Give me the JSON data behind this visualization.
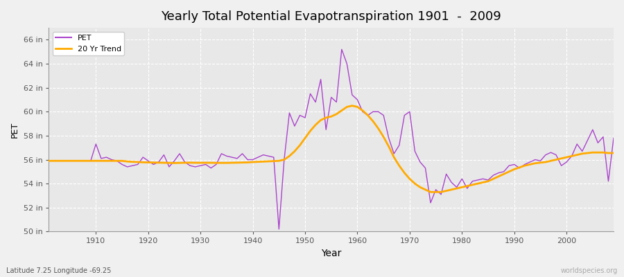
{
  "title": "Yearly Total Potential Evapotranspiration 1901  -  2009",
  "xlabel": "Year",
  "ylabel": "PET",
  "bottom_left_label": "Latitude 7.25 Longitude -69.25",
  "bottom_right_label": "worldspecies.org",
  "pet_color": "#aa44cc",
  "trend_color": "#ffaa00",
  "bg_color": "#f0f0f0",
  "plot_bg_color": "#e8e8e8",
  "ylim": [
    50,
    67
  ],
  "ytick_labels": [
    "50 in",
    "52 in",
    "54 in",
    "56 in",
    "58 in",
    "60 in",
    "62 in",
    "64 in",
    "66 in"
  ],
  "ytick_values": [
    50,
    52,
    54,
    56,
    58,
    60,
    62,
    64,
    66
  ],
  "xlim": [
    1901,
    2009
  ],
  "years": [
    1901,
    1902,
    1903,
    1904,
    1905,
    1906,
    1907,
    1908,
    1909,
    1910,
    1911,
    1912,
    1913,
    1914,
    1915,
    1916,
    1917,
    1918,
    1919,
    1920,
    1921,
    1922,
    1923,
    1924,
    1925,
    1926,
    1927,
    1928,
    1929,
    1930,
    1931,
    1932,
    1933,
    1934,
    1935,
    1936,
    1937,
    1938,
    1939,
    1940,
    1941,
    1942,
    1943,
    1944,
    1945,
    1946,
    1947,
    1948,
    1949,
    1950,
    1951,
    1952,
    1953,
    1954,
    1955,
    1956,
    1957,
    1958,
    1959,
    1960,
    1961,
    1962,
    1963,
    1964,
    1965,
    1966,
    1967,
    1968,
    1969,
    1970,
    1971,
    1972,
    1973,
    1974,
    1975,
    1976,
    1977,
    1978,
    1979,
    1980,
    1981,
    1982,
    1983,
    1984,
    1985,
    1986,
    1987,
    1988,
    1989,
    1990,
    1991,
    1992,
    1993,
    1994,
    1995,
    1996,
    1997,
    1998,
    1999,
    2000,
    2001,
    2002,
    2003,
    2004,
    2005,
    2006,
    2007,
    2008,
    2009
  ],
  "pet_values": [
    55.9,
    55.9,
    55.9,
    55.9,
    55.9,
    55.9,
    55.9,
    55.9,
    55.9,
    57.3,
    56.1,
    56.2,
    56.0,
    55.9,
    55.6,
    55.4,
    55.5,
    55.6,
    56.2,
    55.9,
    55.6,
    55.8,
    56.4,
    55.4,
    55.9,
    56.5,
    55.8,
    55.5,
    55.4,
    55.5,
    55.6,
    55.3,
    55.6,
    56.5,
    56.3,
    56.2,
    56.1,
    56.5,
    56.0,
    56.0,
    56.2,
    56.4,
    56.3,
    56.2,
    50.2,
    56.0,
    59.9,
    58.8,
    59.7,
    59.5,
    61.5,
    60.8,
    62.7,
    58.5,
    61.2,
    60.8,
    65.2,
    64.0,
    61.4,
    61.0,
    60.0,
    59.7,
    60.0,
    60.0,
    59.7,
    57.8,
    56.5,
    57.2,
    59.7,
    60.0,
    56.7,
    55.8,
    55.3,
    52.4,
    53.5,
    53.1,
    54.8,
    54.1,
    53.7,
    54.4,
    53.6,
    54.2,
    54.3,
    54.4,
    54.3,
    54.7,
    54.9,
    55.0,
    55.5,
    55.6,
    55.3,
    55.6,
    55.8,
    56.0,
    55.9,
    56.4,
    56.6,
    56.4,
    55.5,
    55.8,
    56.3,
    57.3,
    56.7,
    57.6,
    58.5,
    57.4,
    57.9,
    54.2,
    57.8
  ],
  "trend_values": [
    55.9,
    55.9,
    55.9,
    55.9,
    55.9,
    55.9,
    55.9,
    55.9,
    55.9,
    55.9,
    55.9,
    55.9,
    55.9,
    55.9,
    55.9,
    55.85,
    55.82,
    55.8,
    55.78,
    55.77,
    55.76,
    55.75,
    55.74,
    55.73,
    55.72,
    55.73,
    55.74,
    55.75,
    55.74,
    55.74,
    55.74,
    55.74,
    55.73,
    55.73,
    55.73,
    55.74,
    55.75,
    55.76,
    55.77,
    55.8,
    55.82,
    55.84,
    55.86,
    55.88,
    55.9,
    56.0,
    56.3,
    56.7,
    57.2,
    57.8,
    58.4,
    58.9,
    59.3,
    59.5,
    59.6,
    59.8,
    60.1,
    60.4,
    60.5,
    60.4,
    60.1,
    59.7,
    59.2,
    58.6,
    57.9,
    57.1,
    56.2,
    55.5,
    54.9,
    54.4,
    54.0,
    53.7,
    53.5,
    53.3,
    53.3,
    53.3,
    53.4,
    53.5,
    53.6,
    53.7,
    53.8,
    53.9,
    54.0,
    54.1,
    54.2,
    54.4,
    54.6,
    54.8,
    55.0,
    55.2,
    55.35,
    55.5,
    55.6,
    55.7,
    55.75,
    55.8,
    55.9,
    56.0,
    56.1,
    56.2,
    56.3,
    56.4,
    56.5,
    56.55,
    56.6,
    56.6,
    56.6,
    56.55,
    56.55
  ]
}
